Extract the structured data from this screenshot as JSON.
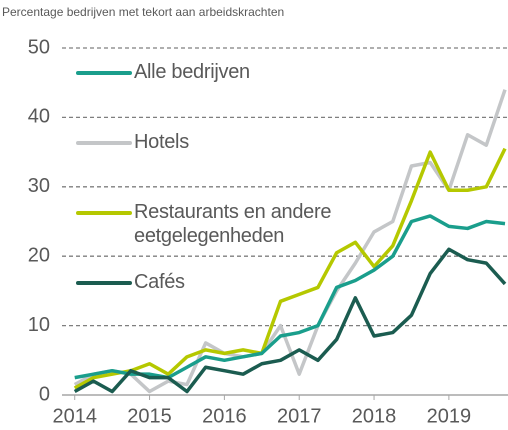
{
  "chart_data": {
    "type": "line",
    "title": "Percentage bedrijven met tekort aan arbeidskrachten",
    "x": [
      2014,
      2014.25,
      2014.5,
      2014.75,
      2015,
      2015.25,
      2015.5,
      2015.75,
      2016,
      2016.25,
      2016.5,
      2016.75,
      2017,
      2017.25,
      2017.5,
      2017.75,
      2018,
      2018.25,
      2018.5,
      2018.75,
      2019,
      2019.25,
      2019.5,
      2019.75
    ],
    "xlim": [
      2013.83,
      2019.79
    ],
    "xticks": [
      2014,
      2015,
      2016,
      2017,
      2018,
      2019
    ],
    "ylim": [
      0,
      50
    ],
    "yticks": [
      0,
      10,
      20,
      30,
      40,
      50
    ],
    "grid": true,
    "series": [
      {
        "name": "Alle bedrijven",
        "color": "#1a9e8c",
        "values": [
          2.5,
          3,
          3.5,
          3,
          3,
          2.5,
          4,
          5.5,
          5,
          5.5,
          6,
          8.5,
          9,
          10,
          15.5,
          16.5,
          18,
          20,
          25,
          25.8,
          24.3,
          24,
          25,
          24.7
        ]
      },
      {
        "name": "Hotels",
        "color": "#c4c6c8",
        "values": [
          1.5,
          3,
          3.5,
          3,
          0.5,
          2,
          1.5,
          7.5,
          6,
          5.5,
          6,
          10,
          3,
          10,
          15,
          19,
          23.5,
          25,
          33,
          33.5,
          29.5,
          37.5,
          36,
          44
        ]
      },
      {
        "name": "Restaurants en andere eetgelegenheden",
        "color": "#b5c800",
        "values": [
          1,
          2.5,
          3,
          3.5,
          4.5,
          3,
          5.5,
          6.5,
          6,
          6.5,
          6,
          13.5,
          14.5,
          15.5,
          20.5,
          22,
          18.5,
          21.5,
          28,
          35,
          29.5,
          29.5,
          30,
          35.5
        ]
      },
      {
        "name": "Cafés",
        "color": "#1b5c50",
        "values": [
          0.5,
          2,
          0.5,
          3.5,
          2.5,
          2.5,
          0.5,
          4,
          3.5,
          3,
          4.5,
          5,
          6.5,
          5,
          8,
          14,
          8.5,
          9,
          11.5,
          17.5,
          21,
          19.5,
          19,
          16
        ]
      }
    ]
  }
}
